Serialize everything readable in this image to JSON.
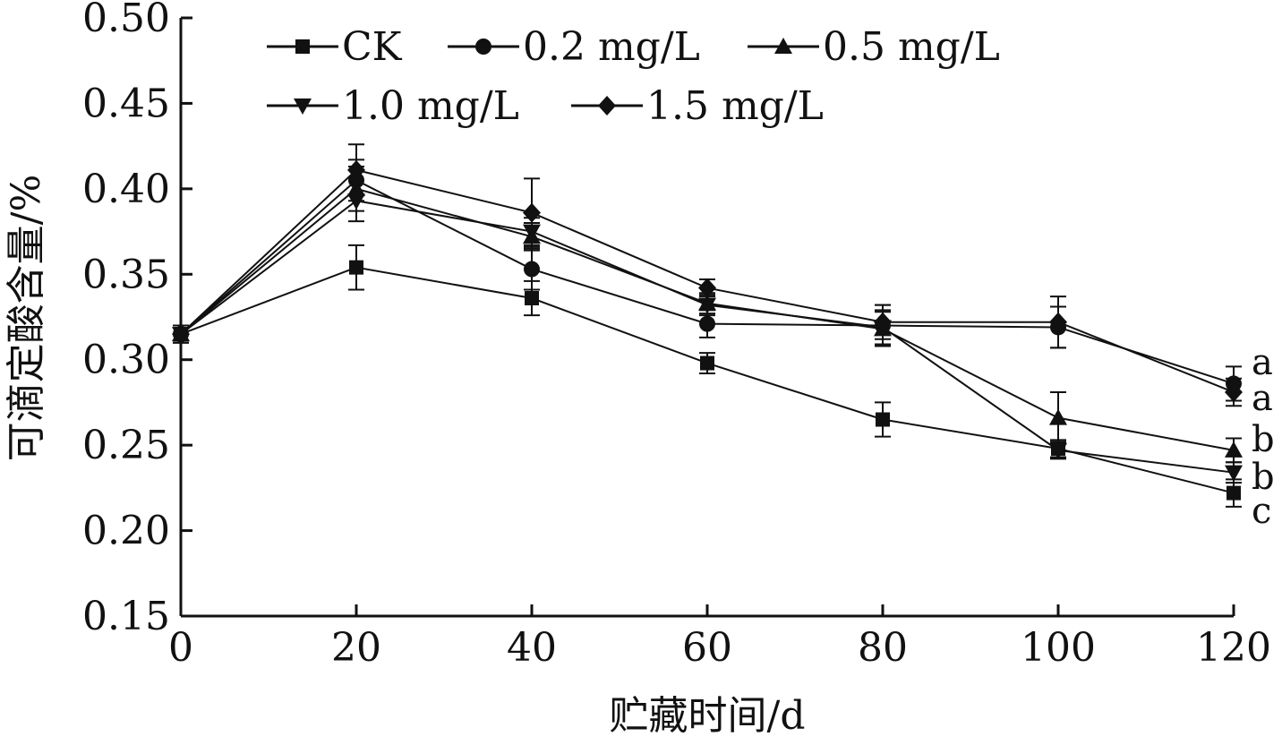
{
  "chart_data": {
    "type": "line",
    "xlabel": "贮藏时间/d",
    "ylabel": "可滴定酸含量/%",
    "x": [
      0,
      20,
      40,
      60,
      80,
      100,
      120
    ],
    "x_ticks": [
      "0",
      "20",
      "40",
      "60",
      "80",
      "100",
      "120"
    ],
    "y_ticks": [
      "0.15",
      "0.20",
      "0.25",
      "0.30",
      "0.35",
      "0.40",
      "0.45",
      "0.50"
    ],
    "xlim": [
      0,
      120
    ],
    "ylim": [
      0.15,
      0.5
    ],
    "grid": false,
    "legend_position": "top",
    "series": [
      {
        "name": "CK",
        "marker": "square",
        "values": [
          0.315,
          0.354,
          0.336,
          0.298,
          0.265,
          0.248,
          0.222
        ],
        "errors": [
          0.005,
          0.013,
          0.01,
          0.006,
          0.01,
          0.005,
          0.008
        ]
      },
      {
        "name": "0.2 mg/L",
        "marker": "circle",
        "values": [
          0.315,
          0.405,
          0.353,
          0.321,
          0.32,
          0.319,
          0.286
        ],
        "errors": [
          0.005,
          0.012,
          0.012,
          0.008,
          0.012,
          0.012,
          0.01
        ]
      },
      {
        "name": "0.5 mg/L",
        "marker": "triangle-up",
        "values": [
          0.315,
          0.4,
          0.372,
          0.333,
          0.318,
          0.266,
          0.247
        ],
        "errors": [
          0.005,
          0.013,
          0.008,
          0.006,
          0.01,
          0.015,
          0.007
        ]
      },
      {
        "name": "1.0 mg/L",
        "marker": "triangle-down",
        "values": [
          0.315,
          0.393,
          0.375,
          0.332,
          0.319,
          0.247,
          0.234
        ],
        "errors": [
          0.005,
          0.012,
          0.008,
          0.006,
          0.01,
          0.005,
          0.006
        ]
      },
      {
        "name": "1.5 mg/L",
        "marker": "diamond",
        "values": [
          0.315,
          0.411,
          0.386,
          0.342,
          0.322,
          0.322,
          0.281
        ],
        "errors": [
          0.005,
          0.015,
          0.02,
          0.005,
          0.01,
          0.015,
          0.008
        ]
      }
    ],
    "annotations": [
      {
        "x": 120,
        "y": 0.286,
        "text": "a"
      },
      {
        "x": 120,
        "y": 0.281,
        "text": "a"
      },
      {
        "x": 120,
        "y": 0.247,
        "text": "b"
      },
      {
        "x": 120,
        "y": 0.234,
        "text": "b"
      },
      {
        "x": 120,
        "y": 0.222,
        "text": "c"
      }
    ]
  }
}
